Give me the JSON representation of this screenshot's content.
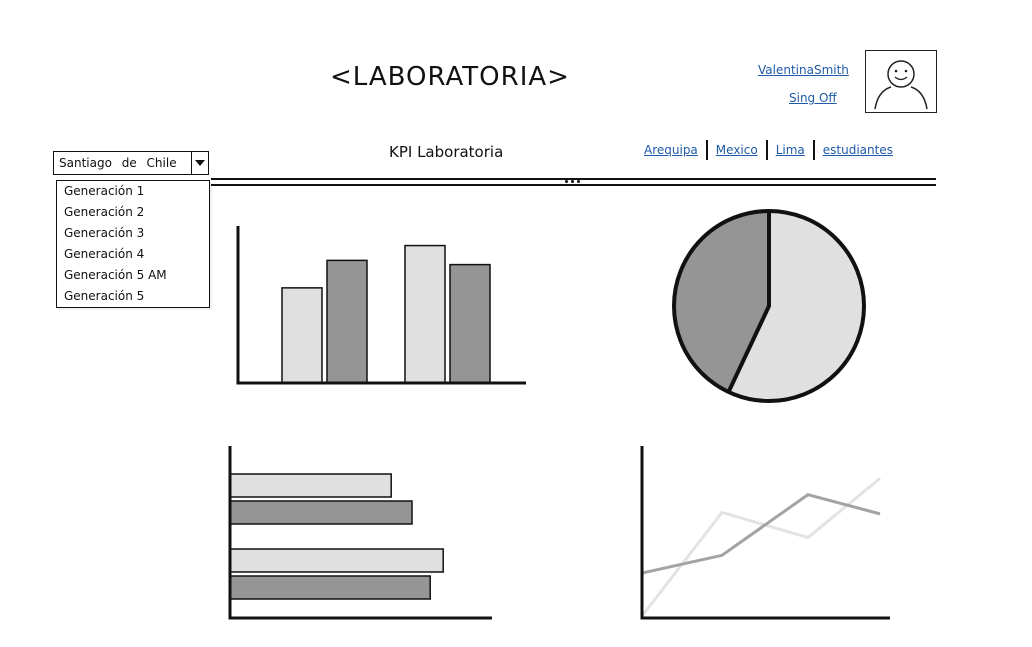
{
  "header": {
    "brand": "<LABORATORIA>",
    "user_name": "ValentinaSmith",
    "signoff_label": "Sing Off",
    "avatar_icon": "avatar-face-icon"
  },
  "subheader": {
    "title": "KPI Laboratoria",
    "nav": [
      "Arequipa",
      "Mexico",
      "Lima",
      "estudiantes"
    ]
  },
  "filter": {
    "selected": "Santiago de Chile",
    "options": [
      "Generación 1",
      "Generación 2",
      "Generación 3",
      "Generación 4",
      "Generación 5 AM",
      "Generación 5"
    ]
  },
  "colors": {
    "light": "#e0e0e0",
    "dark": "#959595",
    "line_light": "#e3e3e3",
    "line_dark": "#a3a3a3",
    "stroke": "#111111",
    "link": "#1f5aa6"
  },
  "chart_data": [
    {
      "type": "bar",
      "orientation": "vertical",
      "categories": [
        "",
        ""
      ],
      "series": [
        {
          "values": [
            45,
            65
          ],
          "color": "light"
        },
        {
          "values": [
            58,
            56
          ],
          "color": "dark"
        }
      ],
      "ylim": [
        0,
        70
      ]
    },
    {
      "type": "pie",
      "values": [
        57,
        43
      ],
      "colors": [
        "light",
        "dark"
      ]
    },
    {
      "type": "bar",
      "orientation": "horizontal",
      "categories": [
        "",
        ""
      ],
      "series": [
        {
          "values": [
            62,
            82
          ],
          "color": "light"
        },
        {
          "values": [
            70,
            77
          ],
          "color": "dark"
        }
      ],
      "xlim": [
        0,
        100
      ]
    },
    {
      "type": "line",
      "x": [
        0,
        1,
        2,
        3
      ],
      "series": [
        {
          "values": [
            0,
            70,
            53,
            93
          ],
          "color": "line_light"
        },
        {
          "values": [
            29,
            41,
            82,
            69
          ],
          "color": "line_dark"
        }
      ],
      "ylim": [
        0,
        100
      ]
    }
  ]
}
